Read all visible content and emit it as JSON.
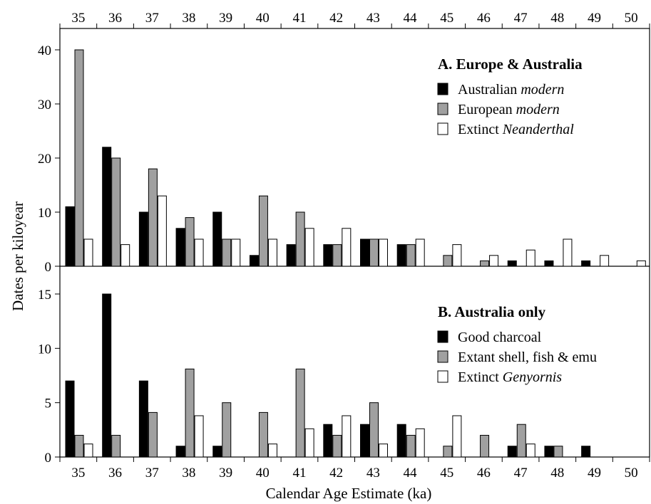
{
  "chart_data": [
    {
      "type": "bar",
      "title": "A. Europe & Australia",
      "xlabel": "",
      "ylabel": "",
      "categories": [
        "35",
        "36",
        "37",
        "38",
        "39",
        "40",
        "41",
        "42",
        "43",
        "44",
        "45",
        "46",
        "47",
        "48",
        "49",
        "50"
      ],
      "ylim": [
        0,
        40
      ],
      "yticks": [
        "0",
        "10",
        "20",
        "30",
        "40"
      ],
      "legend_position": "top-right",
      "series": [
        {
          "name": "Australian ",
          "name_italic": "modern",
          "color": "#000000",
          "values": [
            11,
            22,
            10,
            7,
            10,
            2,
            4,
            4,
            5,
            4,
            0,
            0,
            1,
            1,
            1,
            0
          ]
        },
        {
          "name": "European ",
          "name_italic": "modern",
          "color": "#a0a0a0",
          "values": [
            40,
            20,
            18,
            9,
            5,
            13,
            10,
            4,
            5,
            4,
            2,
            1,
            0,
            0,
            0,
            0
          ]
        },
        {
          "name": "Extinct ",
          "name_italic": "Neanderthal",
          "color": "#ffffff",
          "values": [
            5,
            4,
            13,
            5,
            5,
            5,
            7,
            7,
            5,
            5,
            4,
            2,
            3,
            5,
            2,
            1
          ]
        }
      ]
    },
    {
      "type": "bar",
      "title": "B. Australia only",
      "xlabel": "Calendar Age Estimate (ka)",
      "ylabel": "",
      "categories": [
        "35",
        "36",
        "37",
        "38",
        "39",
        "40",
        "41",
        "42",
        "43",
        "44",
        "45",
        "46",
        "47",
        "48",
        "49",
        "50"
      ],
      "ylim": [
        0,
        15
      ],
      "yticks": [
        "0",
        "5",
        "10",
        "15"
      ],
      "legend_position": "top-right",
      "series": [
        {
          "name": "Good charcoal",
          "name_italic": "",
          "color": "#000000",
          "values": [
            7,
            15,
            7,
            1,
            1,
            0,
            0,
            3,
            3,
            3,
            0,
            0,
            1,
            1,
            1,
            0
          ]
        },
        {
          "name": "Extant shell, fish & emu",
          "name_italic": "",
          "color": "#a0a0a0",
          "values": [
            2,
            2,
            4.1,
            8.1,
            5,
            4.1,
            8.1,
            2,
            5,
            2,
            1,
            2,
            3,
            1,
            0,
            0
          ]
        },
        {
          "name": "Extinct ",
          "name_italic": "Genyornis",
          "color": "#ffffff",
          "values": [
            1.2,
            0,
            0,
            3.8,
            0,
            1.2,
            2.6,
            3.8,
            1.2,
            2.6,
            3.8,
            0,
            1.2,
            0,
            0,
            0
          ]
        }
      ]
    }
  ],
  "shared_ylabel": "Dates per kiloyear"
}
